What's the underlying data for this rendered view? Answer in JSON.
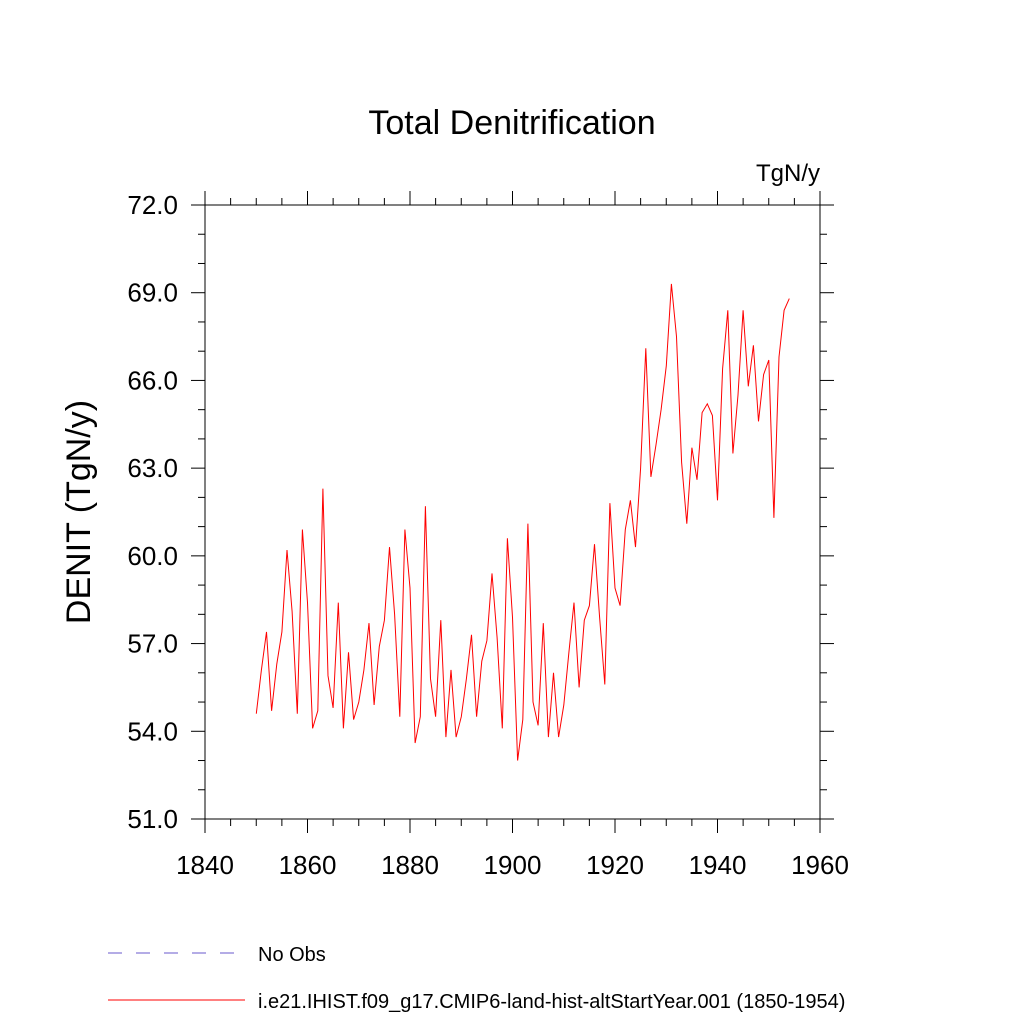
{
  "chart_data": {
    "type": "line",
    "title": "Total Denitrification",
    "units": "TgN/y",
    "ylabel": "DENIT  (TgN/y)",
    "xlabel": "",
    "xlim": [
      1840,
      1960
    ],
    "ylim": [
      51.0,
      72.0
    ],
    "xticks": [
      "1840",
      "1860",
      "1880",
      "1900",
      "1920",
      "1940",
      "1960"
    ],
    "yticks": [
      "51.0",
      "54.0",
      "57.0",
      "60.0",
      "63.0",
      "66.0",
      "69.0",
      "72.0"
    ],
    "grid": false,
    "legend_position": "bottom-left, below plot",
    "series": [
      {
        "name": "No Obs",
        "color": "#6a5acd",
        "style": "dashed",
        "x": [],
        "y": []
      },
      {
        "name": "i.e21.IHIST.f09_g17.CMIP6-land-hist-altStartYear.001 (1850-1954)",
        "color": "#ff0000",
        "style": "solid",
        "x": [
          1850,
          1851,
          1852,
          1853,
          1854,
          1855,
          1856,
          1857,
          1858,
          1859,
          1860,
          1861,
          1862,
          1863,
          1864,
          1865,
          1866,
          1867,
          1868,
          1869,
          1870,
          1871,
          1872,
          1873,
          1874,
          1875,
          1876,
          1877,
          1878,
          1879,
          1880,
          1881,
          1882,
          1883,
          1884,
          1885,
          1886,
          1887,
          1888,
          1889,
          1890,
          1891,
          1892,
          1893,
          1894,
          1895,
          1896,
          1897,
          1898,
          1899,
          1900,
          1901,
          1902,
          1903,
          1904,
          1905,
          1906,
          1907,
          1908,
          1909,
          1910,
          1911,
          1912,
          1913,
          1914,
          1915,
          1916,
          1917,
          1918,
          1919,
          1920,
          1921,
          1922,
          1923,
          1924,
          1925,
          1926,
          1927,
          1928,
          1929,
          1930,
          1931,
          1932,
          1933,
          1934,
          1935,
          1936,
          1937,
          1938,
          1939,
          1940,
          1941,
          1942,
          1943,
          1944,
          1945,
          1946,
          1947,
          1948,
          1949,
          1950,
          1951,
          1952,
          1953,
          1954
        ],
        "y": [
          54.6,
          56.1,
          57.4,
          54.7,
          56.3,
          57.4,
          60.2,
          58.1,
          54.6,
          60.9,
          58.4,
          54.1,
          54.7,
          62.3,
          55.9,
          54.8,
          58.4,
          54.1,
          56.7,
          54.4,
          55.0,
          56.1,
          57.7,
          54.9,
          56.9,
          57.8,
          60.3,
          58.0,
          54.5,
          60.9,
          58.9,
          53.6,
          54.5,
          61.7,
          55.8,
          54.5,
          57.8,
          53.8,
          56.1,
          53.8,
          54.5,
          55.8,
          57.3,
          54.5,
          56.4,
          57.1,
          59.4,
          57.2,
          54.1,
          60.6,
          57.9,
          53.0,
          54.4,
          61.1,
          55.0,
          54.2,
          57.7,
          53.8,
          56.0,
          53.8,
          54.9,
          56.7,
          58.4,
          55.5,
          57.8,
          58.3,
          60.4,
          57.9,
          55.6,
          61.8,
          58.9,
          58.3,
          60.9,
          61.9,
          60.3,
          63.0,
          67.1,
          62.7,
          63.8,
          65.0,
          66.5,
          69.3,
          67.5,
          63.2,
          61.1,
          63.7,
          62.6,
          64.9,
          65.2,
          64.8,
          61.9,
          66.4,
          68.4,
          63.5,
          65.5,
          68.4,
          65.8,
          67.2,
          64.6,
          66.2,
          66.7,
          61.3,
          66.8,
          68.4,
          68.8
        ]
      }
    ]
  }
}
